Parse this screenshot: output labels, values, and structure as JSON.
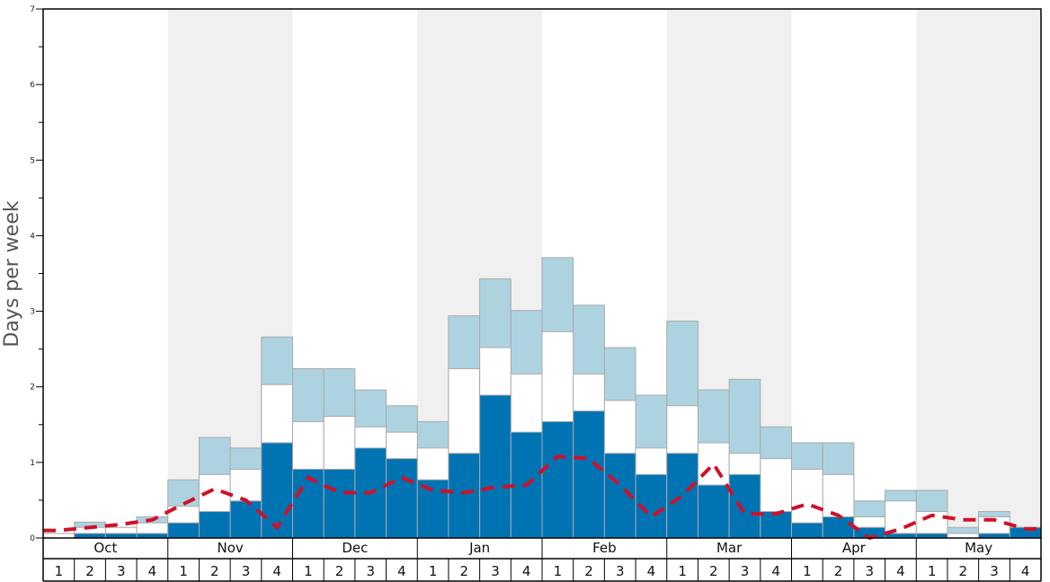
{
  "chart_data": {
    "type": "bar",
    "ylabel": "Days per week",
    "ylim": [
      0,
      7
    ],
    "y_ticks": [
      "0",
      "1",
      "2",
      "3",
      "4",
      "5",
      "6",
      "7"
    ],
    "months": [
      "Oct",
      "Nov",
      "Dec",
      "Jan",
      "Feb",
      "Mar",
      "Apr",
      "May"
    ],
    "week_labels": [
      "1",
      "2",
      "3",
      "4"
    ],
    "categories": [
      "Oct 1",
      "Oct 2",
      "Oct 3",
      "Oct 4",
      "Nov 1",
      "Nov 2",
      "Nov 3",
      "Nov 4",
      "Dec 1",
      "Dec 2",
      "Dec 3",
      "Dec 4",
      "Jan 1",
      "Jan 2",
      "Jan 3",
      "Jan 4",
      "Feb 1",
      "Feb 2",
      "Feb 3",
      "Feb 4",
      "Mar 1",
      "Mar 2",
      "Mar 3",
      "Mar 4",
      "Apr 1",
      "Apr 2",
      "Apr 3",
      "Apr 4",
      "May 1",
      "May 2",
      "May 3",
      "May 4"
    ],
    "series": [
      {
        "color": "#0073b3",
        "values": [
          0.0,
          0.06,
          0.06,
          0.06,
          0.2,
          0.35,
          0.49,
          1.26,
          0.91,
          0.91,
          1.19,
          1.05,
          0.77,
          1.12,
          1.89,
          1.4,
          1.54,
          1.68,
          1.12,
          0.84,
          1.12,
          0.7,
          0.84,
          0.35,
          0.2,
          0.28,
          0.14,
          0.06,
          0.06,
          0.0,
          0.06,
          0.14
        ]
      },
      {
        "color": "#ffffff",
        "values": [
          0.06,
          0.14,
          0.14,
          0.2,
          0.42,
          0.84,
          0.91,
          2.03,
          1.54,
          1.61,
          1.47,
          1.4,
          1.19,
          2.24,
          2.52,
          2.17,
          2.73,
          2.17,
          1.82,
          1.19,
          1.75,
          1.26,
          1.12,
          1.05,
          0.91,
          0.84,
          0.28,
          0.49,
          0.35,
          0.06,
          0.28,
          0.14
        ]
      },
      {
        "color": "#aed3e0",
        "values": [
          0.06,
          0.21,
          0.14,
          0.28,
          0.77,
          1.33,
          1.19,
          2.66,
          2.24,
          2.24,
          1.96,
          1.75,
          1.54,
          2.94,
          3.43,
          3.01,
          3.71,
          3.08,
          2.52,
          1.89,
          2.87,
          1.96,
          2.1,
          1.47,
          1.26,
          1.26,
          0.49,
          0.63,
          0.63,
          0.14,
          0.35,
          0.14
        ]
      }
    ],
    "line": {
      "color": "#d0102a",
      "style": "dashed",
      "values": [
        0.1,
        0.14,
        0.18,
        0.24,
        0.45,
        0.65,
        0.5,
        0.14,
        0.8,
        0.6,
        0.6,
        0.8,
        0.63,
        0.6,
        0.67,
        0.7,
        1.08,
        1.05,
        0.7,
        0.28,
        0.56,
        0.98,
        0.32,
        0.32,
        0.45,
        0.3,
        0.0,
        0.12,
        0.3,
        0.24,
        0.24,
        0.12
      ]
    },
    "colors": {
      "month_band_alt": "#f0f0f0",
      "bar_border": "#aaaaaa",
      "axis": "#000000"
    },
    "grid": false
  }
}
